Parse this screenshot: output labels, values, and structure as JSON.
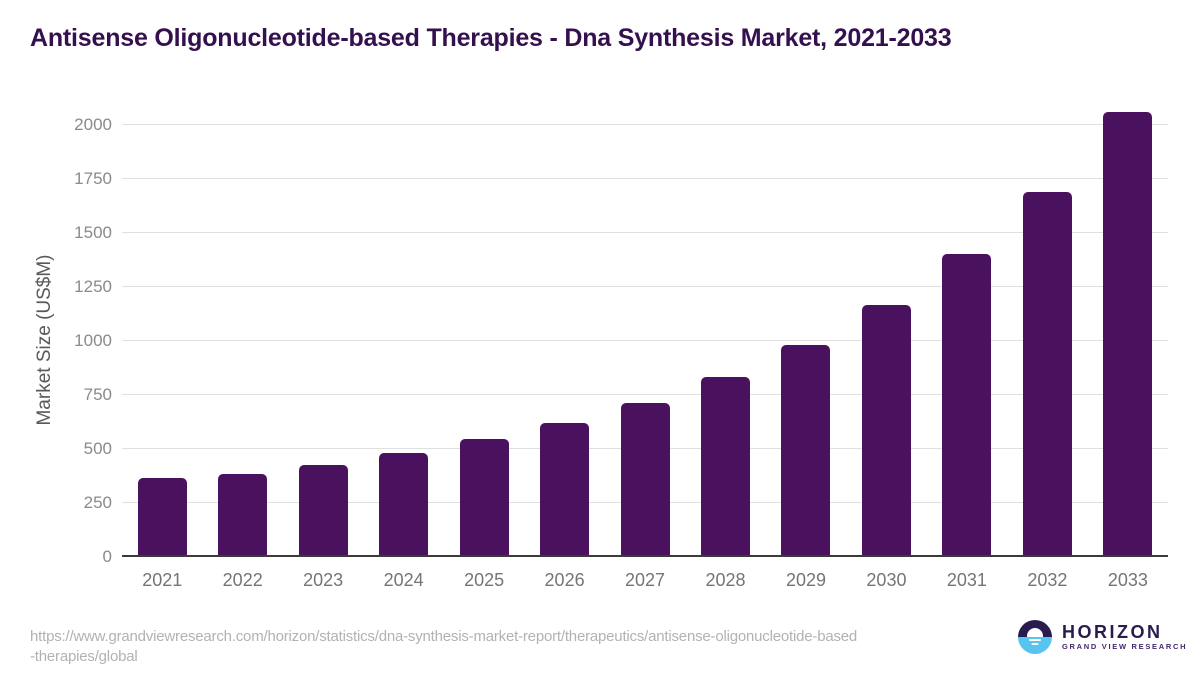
{
  "header": {
    "title": "Antisense Oligonucleotide-based Therapies - Dna Synthesis Market, 2021-2033"
  },
  "chart_data": {
    "type": "bar",
    "title": "Antisense Oligonucleotide-based Therapies - Dna Synthesis Market, 2021-2033",
    "categories": [
      "2021",
      "2022",
      "2023",
      "2024",
      "2025",
      "2026",
      "2027",
      "2028",
      "2029",
      "2030",
      "2031",
      "2032",
      "2033"
    ],
    "values": [
      365,
      385,
      425,
      480,
      545,
      620,
      715,
      835,
      980,
      1165,
      1405,
      1690,
      2060
    ],
    "xlabel": "",
    "ylabel": "Market Size (US$M)",
    "ylim": [
      0,
      2000
    ],
    "yticks": [
      0,
      250,
      500,
      750,
      1000,
      1250,
      1500,
      1750,
      2000
    ],
    "grid": true,
    "legend": "none",
    "bar_color": "#4A115F"
  },
  "footer": {
    "source_lines": [
      "https://www.grandviewresearch.com/horizon/statistics/dna-synthesis-market-report/therapeutics/antisense-oligonucleotide-based",
      "-therapies/global"
    ],
    "logo": {
      "name": "HORIZON",
      "subtitle": "GRAND VIEW RESEARCH"
    }
  },
  "colors": {
    "bar": "#4A115F",
    "title": "#34104F",
    "y_tick_text": "#8a8a8a",
    "x_tick_text": "#757575",
    "y_axis_title_text": "#595959",
    "gridline": "#e0e0e0",
    "axis_line": "#3a3a3a",
    "source_url_text": "#b2b2b2",
    "logo_navy": "#2a1b4e",
    "logo_blue": "#58c5f0",
    "logo_subtitle": "#44296b",
    "background": "#ffffff"
  }
}
